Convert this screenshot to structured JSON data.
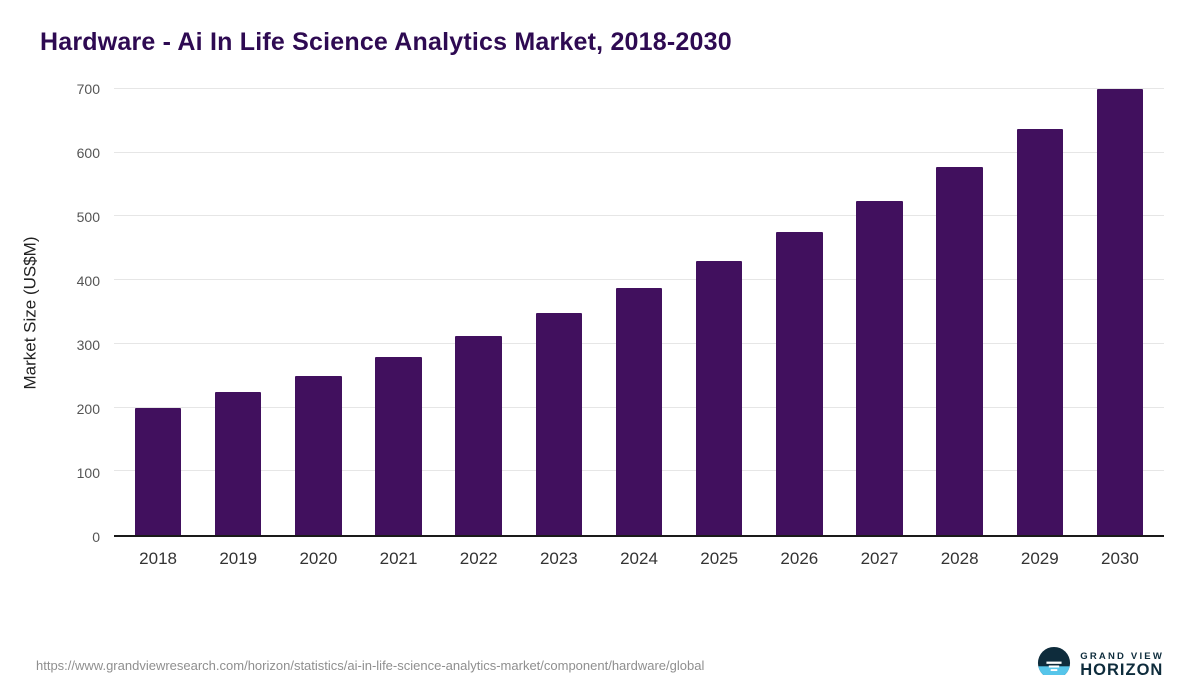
{
  "title": "Hardware - Ai In Life Science Analytics Market, 2018-2030",
  "colors": {
    "bar": "#41105E",
    "title": "#2E0A52",
    "axis": "#1a1a1a",
    "grid": "#e6e6e6",
    "brand_dark": "#0E2C3C",
    "brand_light": "#56C5EA"
  },
  "chart_data": {
    "type": "bar",
    "title": "Hardware - Ai In Life Science Analytics Market, 2018-2030",
    "categories": [
      "2018",
      "2019",
      "2020",
      "2021",
      "2022",
      "2023",
      "2024",
      "2025",
      "2026",
      "2027",
      "2028",
      "2029",
      "2030"
    ],
    "values": [
      200,
      225,
      250,
      280,
      312,
      348,
      388,
      430,
      476,
      525,
      578,
      637,
      700
    ],
    "xlabel": "",
    "ylabel": "Market Size (US$M)",
    "ylim": [
      0,
      700
    ],
    "yticks": [
      0,
      100,
      200,
      300,
      400,
      500,
      600,
      700
    ],
    "grid": "horizontal",
    "legend": "none",
    "bar_color": "#41105E"
  },
  "footer": {
    "source_url": "https://www.grandviewresearch.com/horizon/statistics/ai-in-life-science-analytics-market/component/hardware/global",
    "brand": {
      "top": "GRAND VIEW",
      "bottom": "HORIZON"
    }
  }
}
